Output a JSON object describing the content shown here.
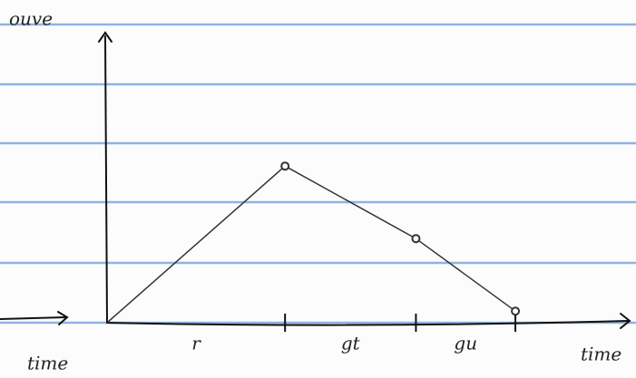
{
  "chart_data": {
    "type": "line",
    "ylabel": "ouve",
    "xlabel": "time",
    "annotations": [
      "time"
    ],
    "x": [
      0,
      3.4,
      5.9,
      7.8
    ],
    "values": [
      0,
      5.4,
      2.9,
      0.4
    ],
    "interval_labels": [
      "r",
      "gt",
      "gu"
    ],
    "xlim": [
      0,
      10
    ],
    "ylim": [
      0,
      10
    ],
    "color": "#333333"
  }
}
